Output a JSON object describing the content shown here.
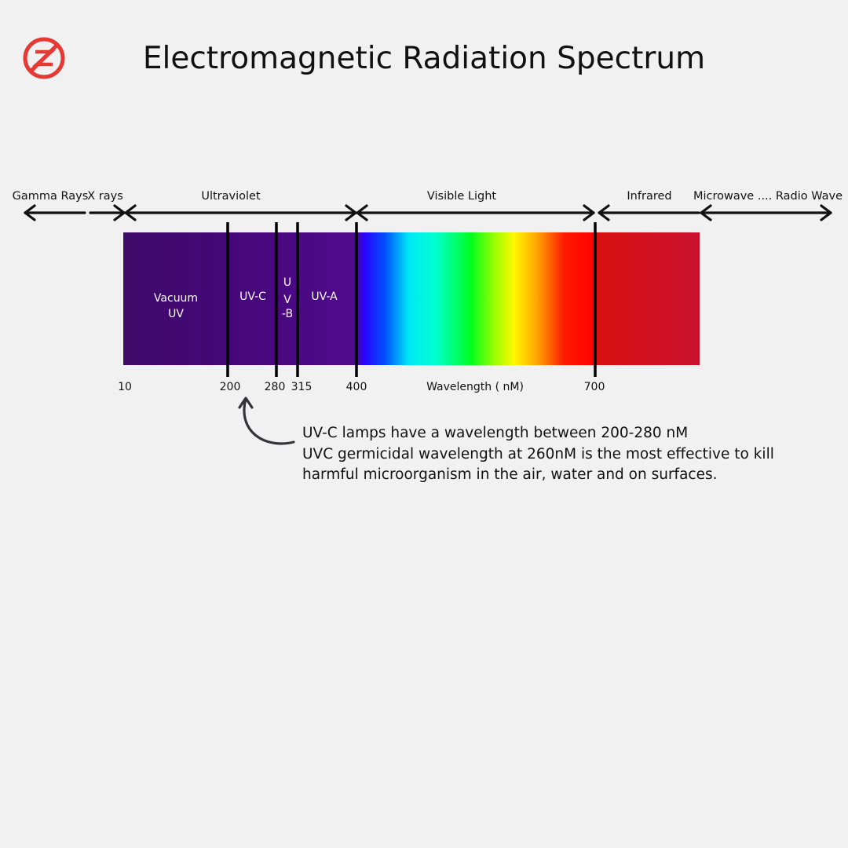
{
  "title": "Electromagnetic Radiation Spectrum",
  "logo_icon": "no-entry-z-logo",
  "colors": {
    "background": "#f1f1f1",
    "logo": "#e53935",
    "uv": "#42106e",
    "infrared": "#c8102e"
  },
  "regions": {
    "gamma": "Gamma Rays",
    "xray": "X rays",
    "ultraviolet": "Ultraviolet",
    "visible": "Visible Light",
    "infrared": "Infrared",
    "microwave": "Microwave .... Radio Wave"
  },
  "bands": {
    "vacuum_uv": [
      "Vacuum",
      "UV"
    ],
    "uvc": "UV-C",
    "uvb": [
      "U",
      "V",
      "-B"
    ],
    "uva": "UV-A"
  },
  "ticks": [
    "10",
    "200",
    "280",
    "315",
    "400",
    "700"
  ],
  "axis_label": "Wavelength ( nM)",
  "note": [
    "UV-C lamps have a wavelength between 200-280 nM",
    "UVC germicidal wavelength at 260nM is the most effective to kill",
    "harmful microorganism in the air, water and on surfaces."
  ]
}
